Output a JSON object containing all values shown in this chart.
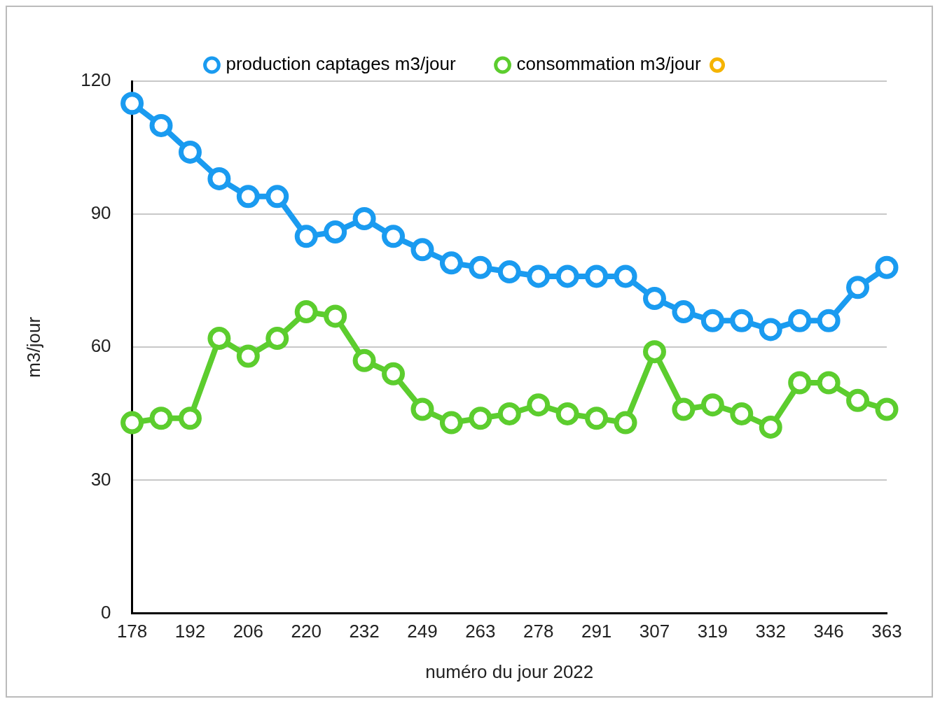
{
  "chart_data": {
    "type": "line",
    "xlabel": "numéro du jour 2022",
    "ylabel": "m3/jour",
    "categories": [
      "178",
      null,
      "192",
      null,
      "206",
      null,
      "220",
      null,
      "232",
      null,
      "249",
      null,
      "263",
      null,
      "278",
      null,
      "291",
      null,
      "307",
      null,
      "319",
      null,
      "332",
      null,
      "346",
      null,
      "363"
    ],
    "series": [
      {
        "name": "production captages m3/jour",
        "color": "#1a9bf0",
        "values": [
          115,
          110,
          104,
          98,
          94,
          94,
          85,
          86,
          89,
          85,
          82,
          79,
          78,
          77,
          76,
          76,
          76,
          76,
          71,
          68,
          66,
          66,
          64,
          66,
          66,
          73.5,
          78
        ]
      },
      {
        "name": "consommation m3/jour",
        "color": "#5ccd2e",
        "values": [
          43,
          44,
          44,
          62,
          58,
          62,
          68,
          67,
          57,
          54,
          46,
          43,
          44,
          45,
          47,
          45,
          44,
          43,
          59,
          46,
          47,
          45,
          42,
          52,
          52,
          48,
          46
        ]
      }
    ],
    "ylim": [
      0,
      120
    ],
    "yticks": [
      0,
      30,
      60,
      90,
      120
    ],
    "grid": "y",
    "legend": "top",
    "marker": "circle",
    "line_style": "solid"
  }
}
